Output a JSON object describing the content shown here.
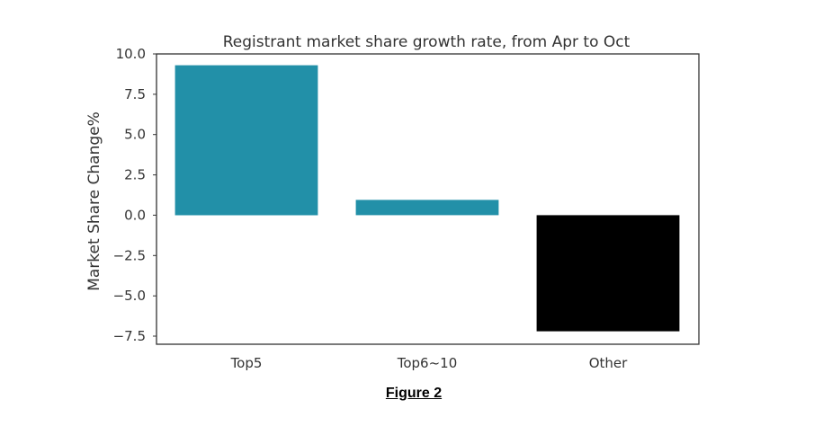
{
  "chart_data": {
    "type": "bar",
    "title": "Registrant market share growth rate, from Apr to Oct",
    "xlabel": "",
    "ylabel": "Market Share Change%",
    "categories": [
      "Top5",
      "Top6~10",
      "Other"
    ],
    "values": [
      9.3,
      0.95,
      -7.2
    ],
    "bar_colors": [
      "#2290a8",
      "#2290a8",
      "#000000"
    ],
    "ylim": [
      -8.0,
      10.0
    ],
    "yticks": [
      10.0,
      7.5,
      5.0,
      2.5,
      0.0,
      -2.5,
      -5.0,
      -7.5
    ],
    "ytick_labels": [
      "10.0",
      "7.5",
      "5.0",
      "2.5",
      "0.0",
      "−2.5",
      "−5.0",
      "−7.5"
    ],
    "grid": false,
    "legend": "none"
  },
  "caption": "Figure 2",
  "colors": {
    "axes": "#333333",
    "text": "#333333"
  }
}
